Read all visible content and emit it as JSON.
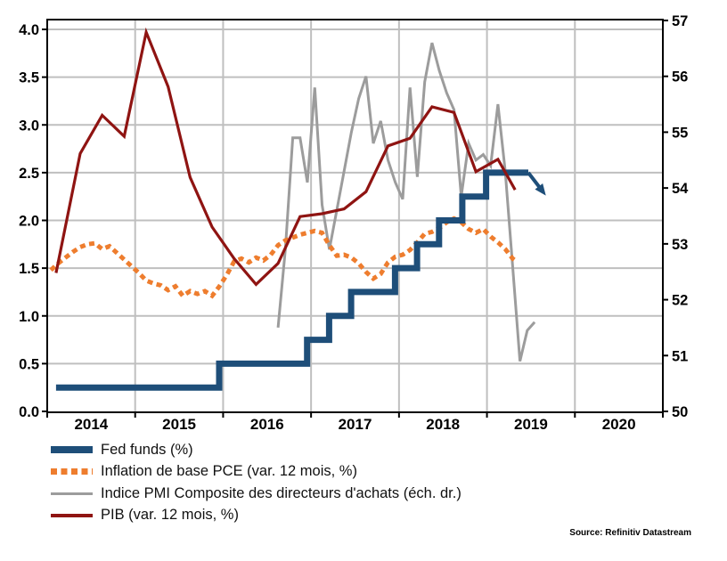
{
  "source_note": "Source: Refinitiv Datastream",
  "colors": {
    "fed_funds": "#1e4e79",
    "pce": "#ee7d2e",
    "pmi": "#9c9c9c",
    "pib": "#8f1412",
    "grid": "#bfbfbf",
    "axis": "#000000"
  },
  "legend": {
    "items": [
      {
        "label": "Fed funds (%)",
        "color": "#1e4e79",
        "style": "thick",
        "thickness": 8
      },
      {
        "label": "Inflation de base PCE (var. 12 mois, %)",
        "color": "#ee7d2e",
        "style": "dashed",
        "thickness": 7
      },
      {
        "label": "Indice PMI Composite des directeurs d'achats (éch. dr.)",
        "color": "#9c9c9c",
        "style": "thin",
        "thickness": 3
      },
      {
        "label": "PIB (var. 12 mois, %)",
        "color": "#8f1412",
        "style": "thin",
        "thickness": 4
      }
    ]
  },
  "chart_data": {
    "type": "line",
    "title": "",
    "grid": true,
    "legend_position": "bottom-left",
    "x_axis": {
      "range": [
        2014,
        2021
      ],
      "year_labels": [
        "2014",
        "2015",
        "2016",
        "2017",
        "2018",
        "2019",
        "2020"
      ],
      "gridline_years": [
        2015,
        2016,
        2017,
        2018,
        2019,
        2020
      ]
    },
    "y_axis_left": {
      "range": [
        0,
        4
      ],
      "tick_values": [
        0,
        0.5,
        1,
        1.5,
        2,
        2.5,
        3,
        3.5,
        4
      ],
      "tick_labels": [
        "0.0",
        "0.5",
        "1.0",
        "1.5",
        "2.0",
        "2.5",
        "3.0",
        "3.5",
        "4.0"
      ]
    },
    "y_axis_right": {
      "range": [
        50,
        57
      ],
      "tick_values": [
        50,
        51,
        52,
        53,
        54,
        55,
        56,
        57
      ],
      "tick_labels": [
        "50",
        "51",
        "52",
        "53",
        "54",
        "55",
        "56",
        "57"
      ]
    },
    "series": [
      {
        "name": "Fed funds (%)",
        "axis": "left",
        "style": "step",
        "color": "#1e4e79",
        "width": 7,
        "points": [
          [
            2014.1,
            0.25
          ],
          [
            2015.955,
            0.5
          ],
          [
            2016.955,
            0.75
          ],
          [
            2017.205,
            1.0
          ],
          [
            2017.455,
            1.25
          ],
          [
            2017.955,
            1.5
          ],
          [
            2018.205,
            1.75
          ],
          [
            2018.455,
            2.0
          ],
          [
            2018.72,
            2.25
          ],
          [
            2018.99,
            2.5
          ],
          [
            2019.47,
            2.5
          ]
        ]
      },
      {
        "name": "Inflation de base PCE (var. 12 mois, %)",
        "axis": "left",
        "style": "dotted",
        "color": "#ee7d2e",
        "width": 5,
        "points": [
          [
            2014.042,
            1.48
          ],
          [
            2014.125,
            1.55
          ],
          [
            2014.208,
            1.61
          ],
          [
            2014.292,
            1.67
          ],
          [
            2014.375,
            1.72
          ],
          [
            2014.458,
            1.75
          ],
          [
            2014.542,
            1.76
          ],
          [
            2014.625,
            1.7
          ],
          [
            2014.708,
            1.73
          ],
          [
            2014.792,
            1.66
          ],
          [
            2014.875,
            1.59
          ],
          [
            2014.958,
            1.52
          ],
          [
            2015.042,
            1.45
          ],
          [
            2015.125,
            1.37
          ],
          [
            2015.208,
            1.34
          ],
          [
            2015.292,
            1.32
          ],
          [
            2015.375,
            1.27
          ],
          [
            2015.458,
            1.31
          ],
          [
            2015.542,
            1.21
          ],
          [
            2015.625,
            1.26
          ],
          [
            2015.708,
            1.23
          ],
          [
            2015.792,
            1.26
          ],
          [
            2015.875,
            1.21
          ],
          [
            2015.958,
            1.31
          ],
          [
            2016.042,
            1.43
          ],
          [
            2016.125,
            1.57
          ],
          [
            2016.208,
            1.6
          ],
          [
            2016.292,
            1.56
          ],
          [
            2016.375,
            1.61
          ],
          [
            2016.458,
            1.58
          ],
          [
            2016.542,
            1.64
          ],
          [
            2016.625,
            1.74
          ],
          [
            2016.708,
            1.79
          ],
          [
            2016.792,
            1.82
          ],
          [
            2016.875,
            1.85
          ],
          [
            2016.958,
            1.87
          ],
          [
            2017.042,
            1.89
          ],
          [
            2017.125,
            1.87
          ],
          [
            2017.208,
            1.74
          ],
          [
            2017.292,
            1.63
          ],
          [
            2017.375,
            1.64
          ],
          [
            2017.458,
            1.61
          ],
          [
            2017.542,
            1.55
          ],
          [
            2017.625,
            1.46
          ],
          [
            2017.708,
            1.39
          ],
          [
            2017.792,
            1.44
          ],
          [
            2017.875,
            1.56
          ],
          [
            2017.958,
            1.62
          ],
          [
            2018.042,
            1.64
          ],
          [
            2018.125,
            1.69
          ],
          [
            2018.208,
            1.77
          ],
          [
            2018.292,
            1.86
          ],
          [
            2018.375,
            1.88
          ],
          [
            2018.458,
            1.92
          ],
          [
            2018.542,
            1.98
          ],
          [
            2018.625,
            2.02
          ],
          [
            2018.708,
            1.98
          ],
          [
            2018.792,
            1.91
          ],
          [
            2018.875,
            1.87
          ],
          [
            2018.958,
            1.91
          ],
          [
            2019.042,
            1.83
          ],
          [
            2019.125,
            1.77
          ],
          [
            2019.208,
            1.7
          ],
          [
            2019.292,
            1.6
          ],
          [
            2019.32,
            1.58
          ]
        ]
      },
      {
        "name": "Indice PMI Composite des directeurs d'achats (éch. dr.)",
        "axis": "right",
        "style": "solid",
        "color": "#9c9c9c",
        "width": 3,
        "points": [
          [
            2016.625,
            51.5
          ],
          [
            2016.708,
            52.9
          ],
          [
            2016.792,
            54.9
          ],
          [
            2016.875,
            54.9
          ],
          [
            2016.958,
            54.1
          ],
          [
            2017.042,
            55.8
          ],
          [
            2017.125,
            53.7
          ],
          [
            2017.208,
            52.9
          ],
          [
            2017.292,
            53.6
          ],
          [
            2017.375,
            54.3
          ],
          [
            2017.458,
            55.0
          ],
          [
            2017.542,
            55.6
          ],
          [
            2017.625,
            56.0
          ],
          [
            2017.708,
            54.8
          ],
          [
            2017.792,
            55.2
          ],
          [
            2017.875,
            54.5
          ],
          [
            2017.958,
            54.1
          ],
          [
            2018.042,
            53.8
          ],
          [
            2018.125,
            55.8
          ],
          [
            2018.208,
            54.2
          ],
          [
            2018.292,
            55.9
          ],
          [
            2018.375,
            56.6
          ],
          [
            2018.458,
            56.1
          ],
          [
            2018.542,
            55.7
          ],
          [
            2018.625,
            55.4
          ],
          [
            2018.708,
            53.85
          ],
          [
            2018.792,
            54.8
          ],
          [
            2018.875,
            54.5
          ],
          [
            2018.958,
            54.6
          ],
          [
            2019.042,
            54.4
          ],
          [
            2019.125,
            55.5
          ],
          [
            2019.208,
            54.3
          ],
          [
            2019.292,
            52.6
          ],
          [
            2019.375,
            50.9
          ],
          [
            2019.458,
            51.45
          ],
          [
            2019.542,
            51.6
          ]
        ]
      },
      {
        "name": "PIB (var. 12 mois, %)",
        "axis": "left",
        "style": "solid",
        "color": "#8f1412",
        "width": 3.2,
        "points": [
          [
            2014.1,
            1.45
          ],
          [
            2014.375,
            2.7
          ],
          [
            2014.625,
            3.1
          ],
          [
            2014.875,
            2.88
          ],
          [
            2015.125,
            3.97
          ],
          [
            2015.375,
            3.4
          ],
          [
            2015.625,
            2.45
          ],
          [
            2015.875,
            1.93
          ],
          [
            2016.125,
            1.6
          ],
          [
            2016.375,
            1.33
          ],
          [
            2016.625,
            1.55
          ],
          [
            2016.875,
            2.04
          ],
          [
            2017.125,
            2.07
          ],
          [
            2017.375,
            2.12
          ],
          [
            2017.625,
            2.3
          ],
          [
            2017.875,
            2.78
          ],
          [
            2018.125,
            2.86
          ],
          [
            2018.375,
            3.19
          ],
          [
            2018.625,
            3.13
          ],
          [
            2018.875,
            2.51
          ],
          [
            2019.125,
            2.64
          ],
          [
            2019.32,
            2.32
          ]
        ]
      }
    ],
    "annotation_arrow": {
      "from": [
        2019.47,
        2.5
      ],
      "to": [
        2019.67,
        2.26
      ],
      "color": "#1e4e79"
    }
  }
}
